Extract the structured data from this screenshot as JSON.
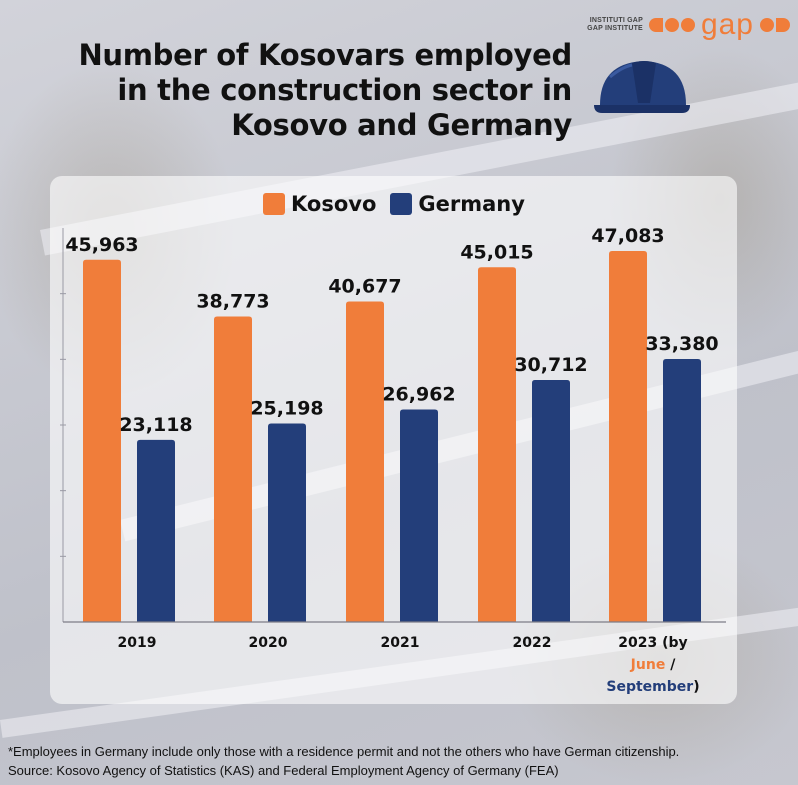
{
  "logo": {
    "line1": "INSTITUTI GAP",
    "line2": "GAP INSTITUTE",
    "word": "gap"
  },
  "title": "Number of Kosovars employed in the construction sector in Kosovo and Germany",
  "icon": "hard-hat-icon",
  "colors": {
    "kosovo": "#f07d3a",
    "germany": "#233e7a"
  },
  "chart_data": {
    "type": "bar",
    "categories": [
      "2019",
      "2020",
      "2021",
      "2022",
      "2023"
    ],
    "category_label_last": {
      "prefix": "2023 (by",
      "june": "June",
      "sep": "/",
      "september": "September",
      "suffix": ")"
    },
    "series": [
      {
        "name": "Kosovo",
        "values": [
          45963,
          38773,
          40677,
          45015,
          47083
        ],
        "labels": [
          "45,963",
          "38,773",
          "40,677",
          "45,015",
          "47,083"
        ]
      },
      {
        "name": "Germany",
        "values": [
          23118,
          25198,
          26962,
          30712,
          33380
        ],
        "labels": [
          "23,118",
          "25,198",
          "26,962",
          "30,712",
          "33,380"
        ]
      }
    ],
    "ylim": [
      0,
      50000
    ],
    "legend": "top-center",
    "grid": false
  },
  "footnotes": {
    "note": "*Employees in Germany include only those with a residence permit and not the others who have German citizenship.",
    "source": "Source: Kosovo Agency of Statistics (KAS) and Federal Employment Agency of Germany (FEA)"
  }
}
